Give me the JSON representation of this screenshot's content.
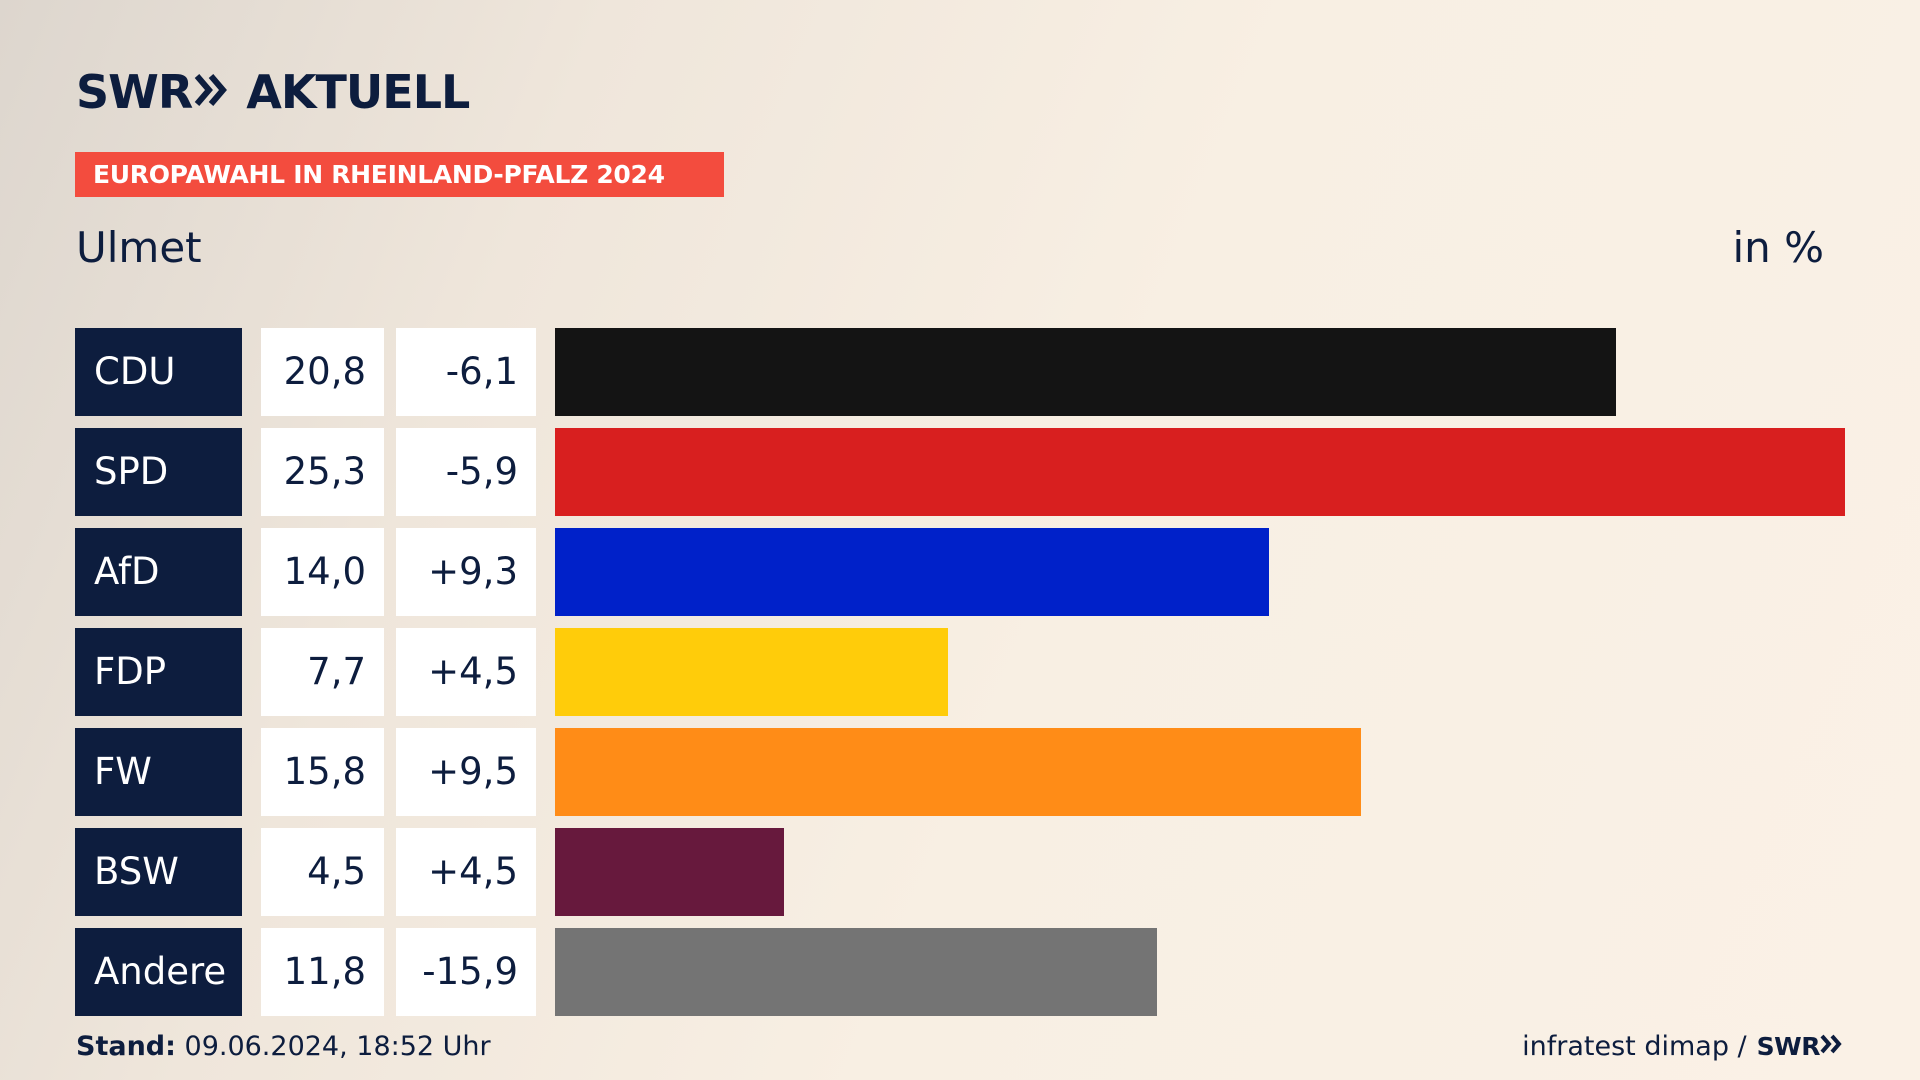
{
  "header": {
    "brand": "SWR",
    "product": "AKTUELL",
    "banner": "EUROPAWAHL IN RHEINLAND-PFALZ 2024",
    "place": "Ulmet",
    "unit": "in %"
  },
  "chart_data": {
    "type": "bar",
    "orientation": "horizontal",
    "xlim": [
      0,
      25.3
    ],
    "categories": [
      "CDU",
      "SPD",
      "AfD",
      "FDP",
      "FW",
      "BSW",
      "Andere"
    ],
    "values": [
      20.8,
      25.3,
      14.0,
      7.7,
      15.8,
      4.5,
      11.8
    ],
    "value_labels": [
      "20,8",
      "25,3",
      "14,0",
      "7,7",
      "15,8",
      "4,5",
      "11,8"
    ],
    "change_labels": [
      "-6,1",
      "-5,9",
      "+9,3",
      "+4,5",
      "+9,5",
      "+4,5",
      "-15,9"
    ],
    "colors": [
      "#141414",
      "#d81f1f",
      "#0021c9",
      "#ffcc0a",
      "#ff8c17",
      "#67193d",
      "#747474"
    ]
  },
  "footer": {
    "stand_label": "Stand:",
    "stand_value": "09.06.2024, 18:52 Uhr",
    "source": "infratest dimap /",
    "source_brand": "SWR"
  }
}
